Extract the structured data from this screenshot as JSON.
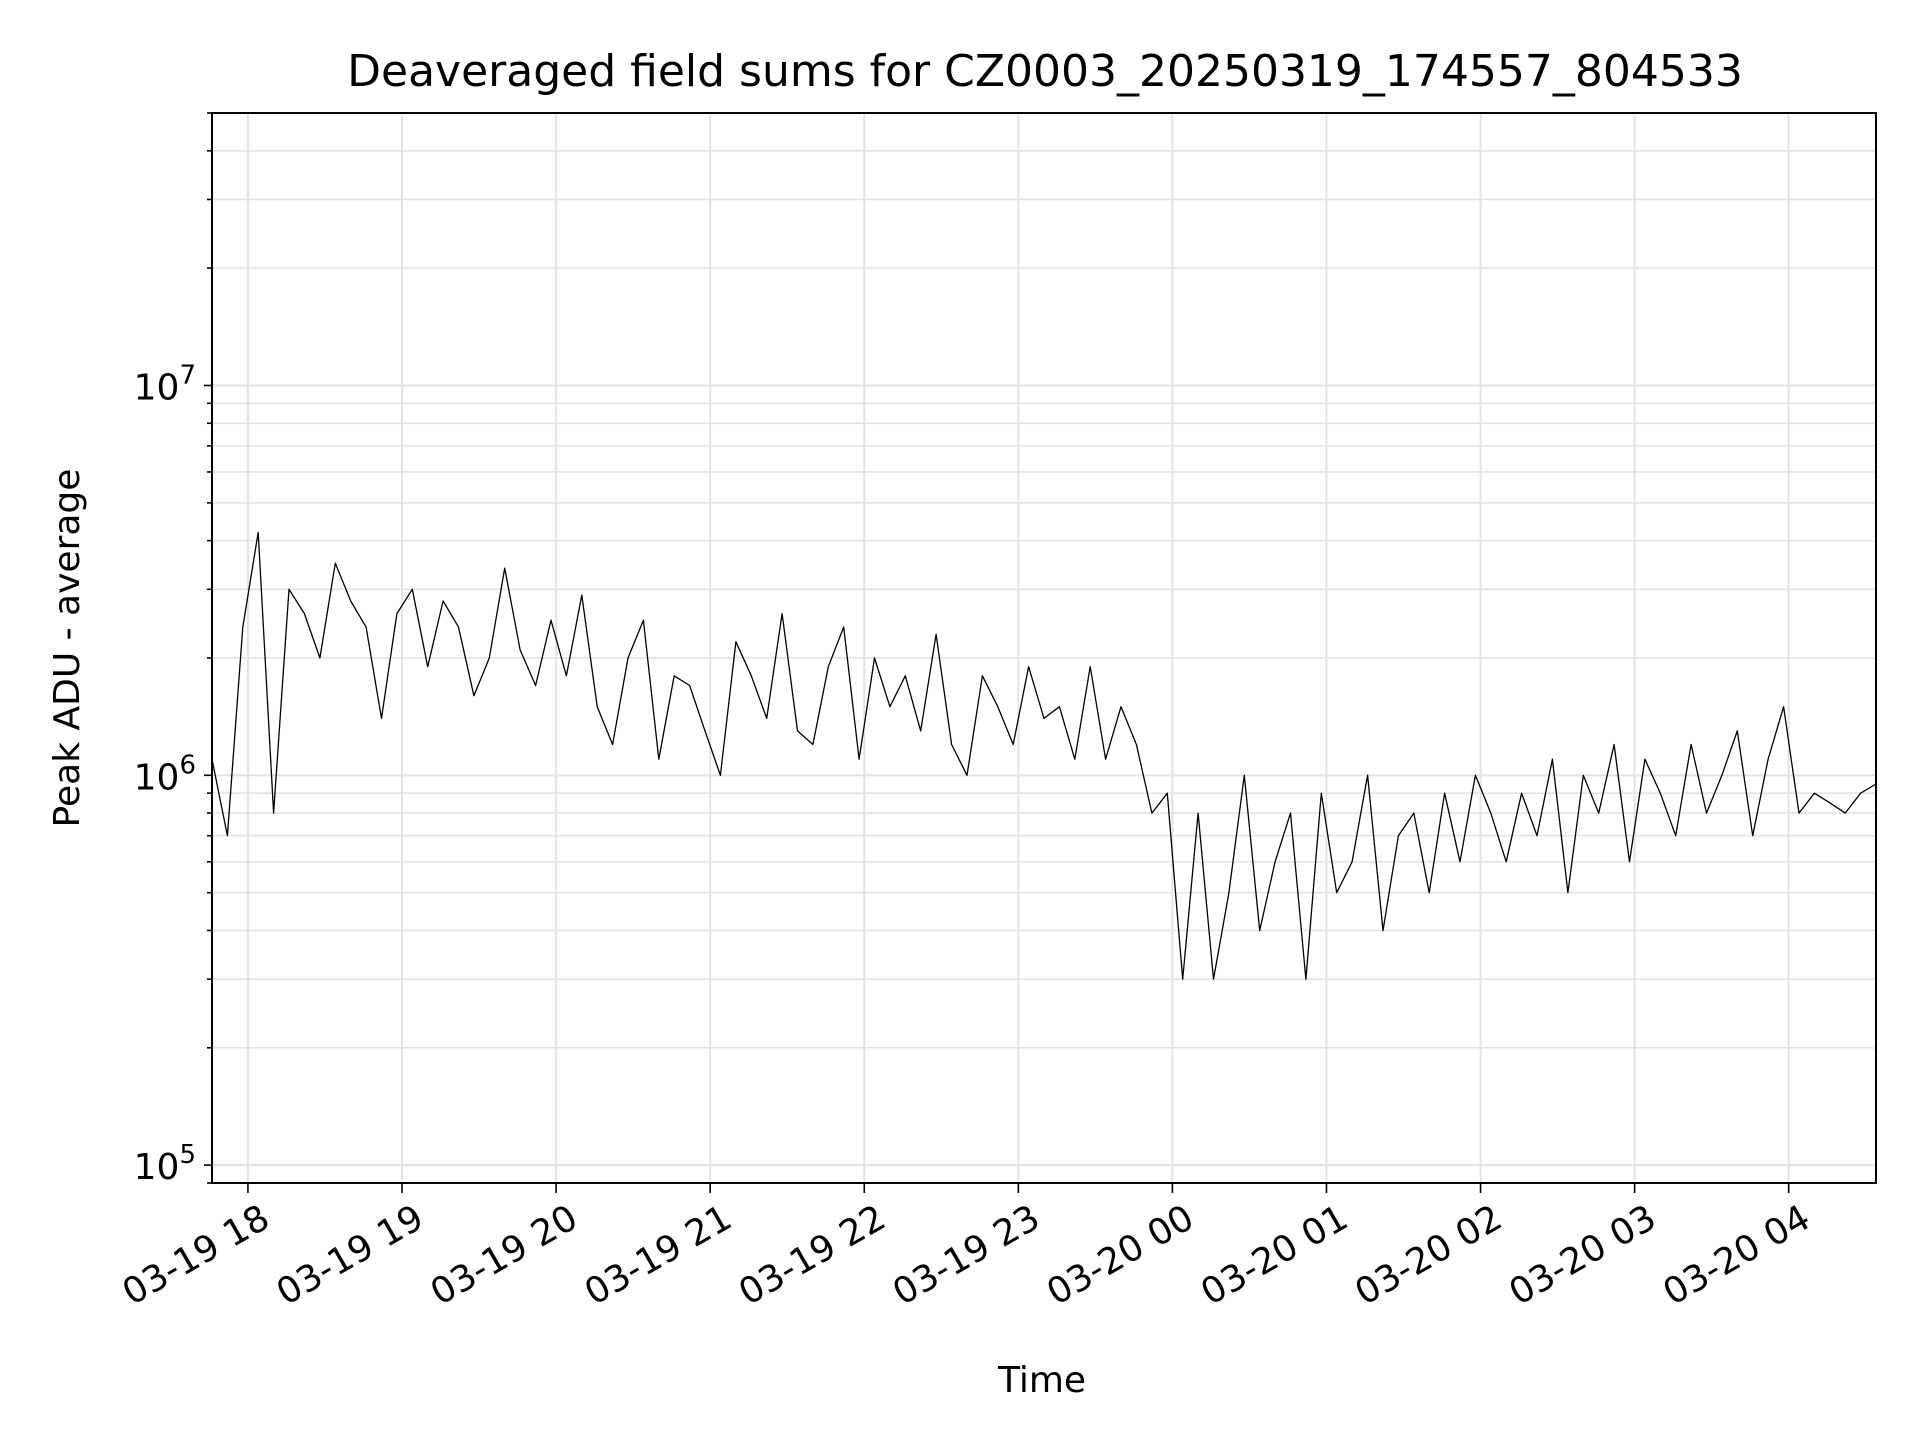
{
  "chart_data": {
    "type": "line",
    "title": "Deaveraged field sums for CZ0003_20250319_174557_804533",
    "xlabel": "Time",
    "ylabel": "Peak ADU - average",
    "yscale": "log",
    "grid": true,
    "line_color": "#000000",
    "xlim": [
      "2025-03-19 17:46",
      "2025-03-20 04:34"
    ],
    "ylim": [
      90000,
      50000000
    ],
    "x_ticks": [
      {
        "value": "2025-03-19 18:00",
        "label": "03-19 18"
      },
      {
        "value": "2025-03-19 19:00",
        "label": "03-19 19"
      },
      {
        "value": "2025-03-19 20:00",
        "label": "03-19 20"
      },
      {
        "value": "2025-03-19 21:00",
        "label": "03-19 21"
      },
      {
        "value": "2025-03-19 22:00",
        "label": "03-19 22"
      },
      {
        "value": "2025-03-19 23:00",
        "label": "03-19 23"
      },
      {
        "value": "2025-03-20 00:00",
        "label": "03-20 00"
      },
      {
        "value": "2025-03-20 01:00",
        "label": "03-20 01"
      },
      {
        "value": "2025-03-20 02:00",
        "label": "03-20 02"
      },
      {
        "value": "2025-03-20 03:00",
        "label": "03-20 03"
      },
      {
        "value": "2025-03-20 04:00",
        "label": "03-20 04"
      }
    ],
    "y_ticks": [
      {
        "value": 100000,
        "base": "10",
        "exp": "5"
      },
      {
        "value": 1000000,
        "base": "10",
        "exp": "6"
      },
      {
        "value": 10000000,
        "base": "10",
        "exp": "7"
      }
    ],
    "series": [
      {
        "x": [
          "2025-03-19 17:46",
          "2025-03-19 17:52",
          "2025-03-19 17:58",
          "2025-03-19 18:04",
          "2025-03-19 18:10",
          "2025-03-19 18:16",
          "2025-03-19 18:22",
          "2025-03-19 18:28",
          "2025-03-19 18:34",
          "2025-03-19 18:40",
          "2025-03-19 18:46",
          "2025-03-19 18:52",
          "2025-03-19 18:58",
          "2025-03-19 19:04",
          "2025-03-19 19:10",
          "2025-03-19 19:16",
          "2025-03-19 19:22",
          "2025-03-19 19:28",
          "2025-03-19 19:34",
          "2025-03-19 19:40",
          "2025-03-19 19:46",
          "2025-03-19 19:52",
          "2025-03-19 19:58",
          "2025-03-19 20:04",
          "2025-03-19 20:10",
          "2025-03-19 20:16",
          "2025-03-19 20:22",
          "2025-03-19 20:28",
          "2025-03-19 20:34",
          "2025-03-19 20:40",
          "2025-03-19 20:46",
          "2025-03-19 20:52",
          "2025-03-19 20:58",
          "2025-03-19 21:04",
          "2025-03-19 21:10",
          "2025-03-19 21:16",
          "2025-03-19 21:22",
          "2025-03-19 21:28",
          "2025-03-19 21:34",
          "2025-03-19 21:40",
          "2025-03-19 21:46",
          "2025-03-19 21:52",
          "2025-03-19 21:58",
          "2025-03-19 22:04",
          "2025-03-19 22:10",
          "2025-03-19 22:16",
          "2025-03-19 22:22",
          "2025-03-19 22:28",
          "2025-03-19 22:34",
          "2025-03-19 22:40",
          "2025-03-19 22:46",
          "2025-03-19 22:52",
          "2025-03-19 22:58",
          "2025-03-19 23:04",
          "2025-03-19 23:10",
          "2025-03-19 23:16",
          "2025-03-19 23:22",
          "2025-03-19 23:28",
          "2025-03-19 23:34",
          "2025-03-19 23:40",
          "2025-03-19 23:46",
          "2025-03-19 23:52",
          "2025-03-19 23:58",
          "2025-03-20 00:04",
          "2025-03-20 00:10",
          "2025-03-20 00:16",
          "2025-03-20 00:22",
          "2025-03-20 00:28",
          "2025-03-20 00:34",
          "2025-03-20 00:40",
          "2025-03-20 00:46",
          "2025-03-20 00:52",
          "2025-03-20 00:58",
          "2025-03-20 01:04",
          "2025-03-20 01:10",
          "2025-03-20 01:16",
          "2025-03-20 01:22",
          "2025-03-20 01:28",
          "2025-03-20 01:34",
          "2025-03-20 01:40",
          "2025-03-20 01:46",
          "2025-03-20 01:52",
          "2025-03-20 01:58",
          "2025-03-20 02:04",
          "2025-03-20 02:10",
          "2025-03-20 02:16",
          "2025-03-20 02:22",
          "2025-03-20 02:28",
          "2025-03-20 02:34",
          "2025-03-20 02:40",
          "2025-03-20 02:46",
          "2025-03-20 02:52",
          "2025-03-20 02:58",
          "2025-03-20 03:04",
          "2025-03-20 03:10",
          "2025-03-20 03:16",
          "2025-03-20 03:22",
          "2025-03-20 03:28",
          "2025-03-20 03:34",
          "2025-03-20 03:40",
          "2025-03-20 03:46",
          "2025-03-20 03:52",
          "2025-03-20 03:58",
          "2025-03-20 04:04",
          "2025-03-20 04:10",
          "2025-03-20 04:16",
          "2025-03-20 04:22",
          "2025-03-20 04:28",
          "2025-03-20 04:34"
        ],
        "y": [
          1100000,
          700000,
          2400000,
          4200000,
          800000,
          3000000,
          2600000,
          2000000,
          3500000,
          2800000,
          2400000,
          1400000,
          2600000,
          3000000,
          1900000,
          2800000,
          2400000,
          1600000,
          2000000,
          3400000,
          2100000,
          1700000,
          2500000,
          1800000,
          2900000,
          1500000,
          1200000,
          2000000,
          2500000,
          1100000,
          1800000,
          1700000,
          1300000,
          1000000,
          2200000,
          1800000,
          1400000,
          2600000,
          1300000,
          1200000,
          1900000,
          2400000,
          1100000,
          2000000,
          1500000,
          1800000,
          1300000,
          2300000,
          1200000,
          1000000,
          1800000,
          1500000,
          1200000,
          1900000,
          1400000,
          1500000,
          1100000,
          1900000,
          1100000,
          1500000,
          1200000,
          800000,
          900000,
          300000,
          800000,
          300000,
          500000,
          1000000,
          400000,
          600000,
          800000,
          300000,
          900000,
          500000,
          600000,
          1000000,
          400000,
          700000,
          800000,
          500000,
          900000,
          600000,
          1000000,
          800000,
          600000,
          900000,
          700000,
          1100000,
          500000,
          1000000,
          800000,
          1200000,
          600000,
          1100000,
          900000,
          700000,
          1200000,
          800000,
          1000000,
          1300000,
          700000,
          1100000,
          1500000,
          800000,
          900000,
          850000,
          800000,
          900000,
          950000
        ]
      }
    ]
  }
}
